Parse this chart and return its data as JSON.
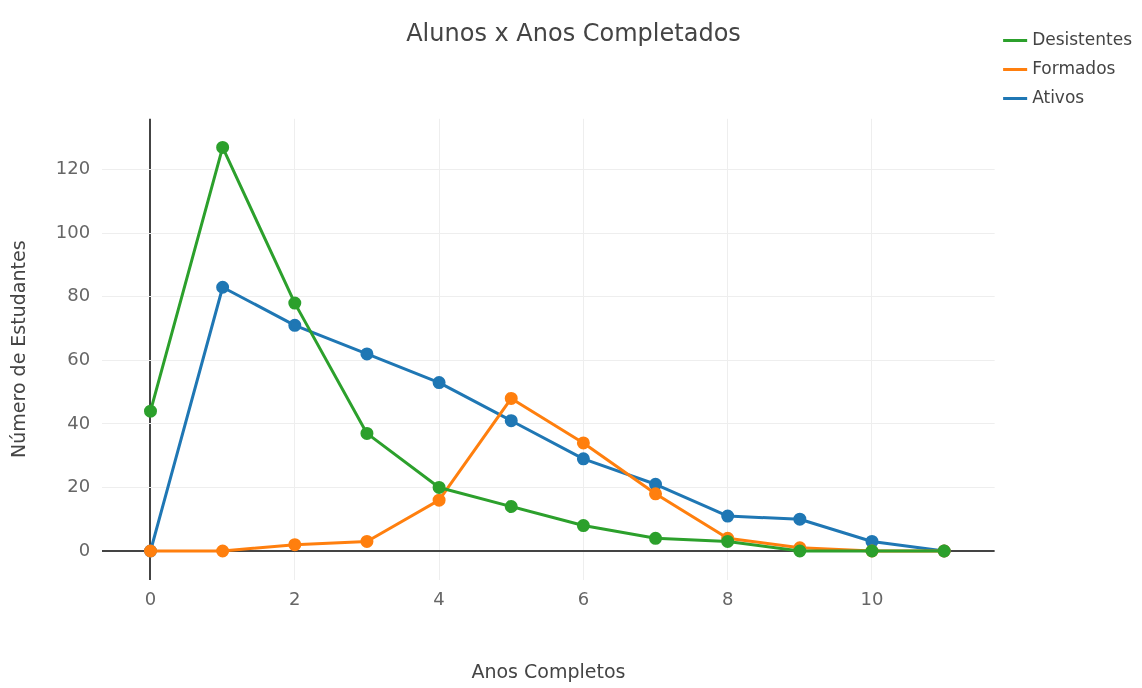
{
  "chart_data": {
    "type": "line",
    "title": "Alunos x Anos Completados",
    "xlabel": "Anos Completos",
    "ylabel": "Número de Estudantes",
    "x": [
      0,
      1,
      2,
      3,
      4,
      5,
      6,
      7,
      8,
      9,
      10,
      11
    ],
    "series": [
      {
        "name": "Ativos",
        "color": "#1f77b4",
        "values": [
          0,
          83,
          71,
          62,
          53,
          41,
          29,
          21,
          11,
          10,
          3,
          0
        ]
      },
      {
        "name": "Formados",
        "color": "#ff7f0e",
        "values": [
          0,
          0,
          2,
          3,
          16,
          48,
          34,
          18,
          4,
          1,
          0,
          0
        ]
      },
      {
        "name": "Desistentes",
        "color": "#2ca02c",
        "values": [
          44,
          127,
          78,
          37,
          20,
          14,
          8,
          4,
          3,
          0,
          0,
          0
        ]
      }
    ],
    "xlim": [
      -0.67,
      11.7
    ],
    "xticks": [
      0,
      2,
      4,
      6,
      8,
      10
    ],
    "ylim": [
      -9,
      136
    ],
    "yticks": [
      0,
      20,
      40,
      60,
      80,
      100,
      120
    ],
    "grid": true,
    "legend": "top right",
    "marker": "circle",
    "line_style": "solid"
  }
}
